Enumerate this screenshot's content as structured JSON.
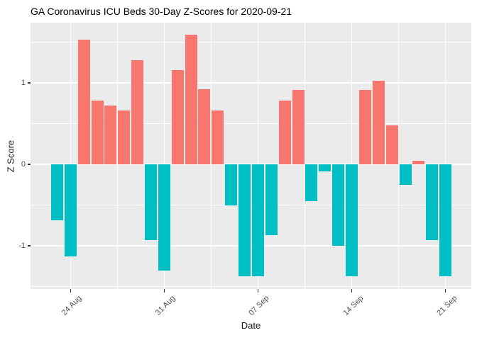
{
  "chart_data": {
    "type": "bar",
    "title": "GA Coronavirus ICU Beds 30-Day Z-Scores for 2020-09-21",
    "xlabel": "Date",
    "ylabel": "Z Score",
    "ylim": [
      -1.53,
      1.74
    ],
    "grid": "on",
    "legend": "none",
    "categories": [
      "2020-08-23",
      "2020-08-24",
      "2020-08-25",
      "2020-08-26",
      "2020-08-27",
      "2020-08-28",
      "2020-08-29",
      "2020-08-30",
      "2020-08-31",
      "2020-09-01",
      "2020-09-02",
      "2020-09-03",
      "2020-09-04",
      "2020-09-05",
      "2020-09-06",
      "2020-09-07",
      "2020-09-08",
      "2020-09-09",
      "2020-09-10",
      "2020-09-11",
      "2020-09-12",
      "2020-09-13",
      "2020-09-14",
      "2020-09-15",
      "2020-09-16",
      "2020-09-17",
      "2020-09-18",
      "2020-09-19",
      "2020-09-20",
      "2020-09-21"
    ],
    "values": [
      -0.69,
      -1.13,
      1.53,
      0.78,
      0.72,
      0.66,
      1.28,
      -0.93,
      -1.3,
      1.16,
      1.59,
      0.92,
      0.66,
      -0.5,
      -1.37,
      -1.37,
      -0.87,
      0.78,
      0.91,
      -0.45,
      -0.09,
      -1.0,
      -1.37,
      0.91,
      1.03,
      0.48,
      -0.25,
      0.04,
      -0.93,
      -1.37
    ],
    "x_ticks": [
      {
        "label": "24 Aug",
        "date": "2020-08-24"
      },
      {
        "label": "31 Aug",
        "date": "2020-08-31"
      },
      {
        "label": "07 Sep",
        "date": "2020-09-07"
      },
      {
        "label": "14 Sep",
        "date": "2020-09-14"
      },
      {
        "label": "21 Sep",
        "date": "2020-09-21"
      }
    ],
    "y_ticks": [
      {
        "label": "-1",
        "value": -1
      },
      {
        "label": "0",
        "value": 0
      },
      {
        "label": "1",
        "value": 1
      }
    ],
    "colors": {
      "positive_bar": "#F8766D",
      "negative_bar": "#00BFC4",
      "panel_background": "#EBEBEB",
      "gridline": "#FFFFFF",
      "axis_text": "#4D4D4D",
      "tick_mark": "#333333",
      "title_text": "#000000",
      "plot_background": "#FFFFFF"
    }
  }
}
